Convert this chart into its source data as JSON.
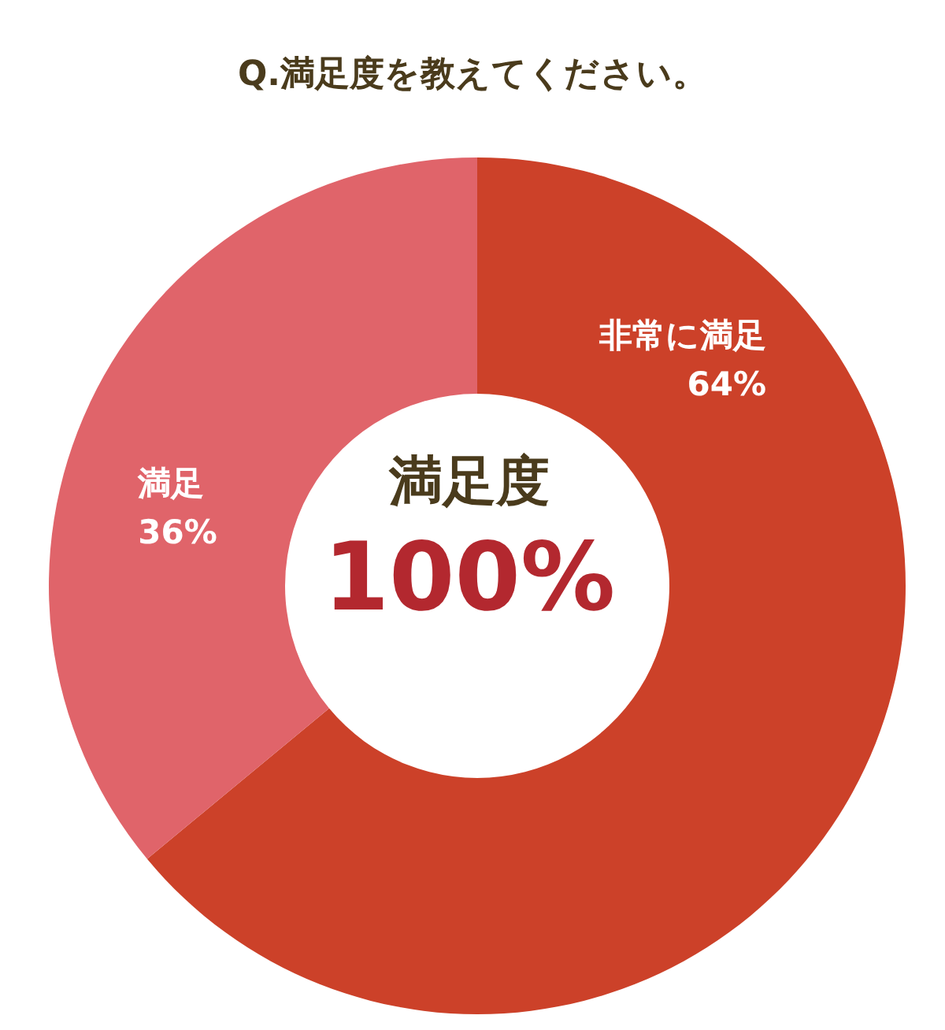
{
  "chart_data": {
    "type": "donut",
    "title": "Q.満足度を教えてください。",
    "categories": [
      "非常に満足",
      "満足"
    ],
    "values": [
      64,
      36
    ],
    "colors": [
      "#cc4129",
      "#e0646a"
    ],
    "value_labels": [
      "64%",
      "36%"
    ],
    "annotations": [
      "満足度",
      "100%"
    ]
  }
}
